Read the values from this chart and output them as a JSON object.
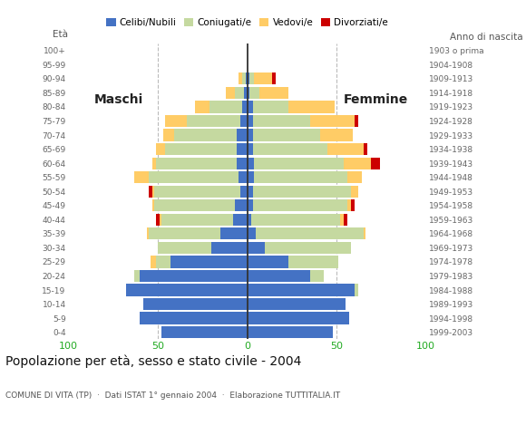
{
  "age_groups": [
    "0-4",
    "5-9",
    "10-14",
    "15-19",
    "20-24",
    "25-29",
    "30-34",
    "35-39",
    "40-44",
    "45-49",
    "50-54",
    "55-59",
    "60-64",
    "65-69",
    "70-74",
    "75-79",
    "80-84",
    "85-89",
    "90-94",
    "95-99",
    "100+"
  ],
  "birth_years": [
    "1999-2003",
    "1994-1998",
    "1989-1993",
    "1984-1988",
    "1979-1983",
    "1974-1978",
    "1969-1973",
    "1964-1968",
    "1959-1963",
    "1954-1958",
    "1949-1953",
    "1944-1948",
    "1939-1943",
    "1934-1938",
    "1929-1933",
    "1924-1928",
    "1919-1923",
    "1914-1918",
    "1909-1913",
    "1904-1908",
    "1903 o prima"
  ],
  "males": {
    "celibi": [
      48,
      60,
      58,
      68,
      60,
      43,
      20,
      15,
      8,
      7,
      4,
      5,
      6,
      6,
      6,
      4,
      3,
      2,
      1,
      0,
      0
    ],
    "coniugati": [
      0,
      0,
      0,
      0,
      3,
      8,
      30,
      40,
      40,
      45,
      48,
      50,
      45,
      40,
      35,
      30,
      18,
      5,
      2,
      0,
      0
    ],
    "vedovi": [
      0,
      0,
      0,
      0,
      0,
      3,
      0,
      1,
      1,
      1,
      1,
      8,
      2,
      5,
      6,
      12,
      8,
      5,
      2,
      0,
      0
    ],
    "divorziati": [
      0,
      0,
      0,
      0,
      0,
      0,
      0,
      0,
      2,
      0,
      2,
      0,
      0,
      0,
      0,
      0,
      0,
      0,
      0,
      0,
      0
    ]
  },
  "females": {
    "nubili": [
      48,
      57,
      55,
      60,
      35,
      23,
      10,
      5,
      2,
      3,
      3,
      4,
      4,
      3,
      3,
      3,
      3,
      1,
      1,
      0,
      0
    ],
    "coniugate": [
      0,
      0,
      0,
      2,
      8,
      28,
      48,
      60,
      50,
      53,
      55,
      52,
      50,
      42,
      38,
      32,
      20,
      6,
      3,
      0,
      0
    ],
    "vedove": [
      0,
      0,
      0,
      0,
      0,
      0,
      0,
      1,
      2,
      2,
      4,
      8,
      15,
      20,
      18,
      25,
      26,
      16,
      10,
      0,
      0
    ],
    "divorziate": [
      0,
      0,
      0,
      0,
      0,
      0,
      0,
      0,
      2,
      2,
      0,
      0,
      5,
      2,
      0,
      2,
      0,
      0,
      2,
      0,
      0
    ]
  },
  "colors": {
    "celibi": "#4472C4",
    "coniugati": "#C5D9A0",
    "vedovi": "#FFCC66",
    "divorziati": "#CC0000"
  },
  "xlim": 100,
  "title": "Popolazione per età, sesso e stato civile - 2004",
  "subtitle": "COMUNE DI VITA (TP)  ·  Dati ISTAT 1° gennaio 2004  ·  Elaborazione TUTTITALIA.IT",
  "xlabel_left": "Maschi",
  "xlabel_right": "Femmine",
  "ylabel_left": "Età",
  "ylabel_right": "Anno di nascita",
  "legend_labels": [
    "Celibi/Nubili",
    "Coniugati/e",
    "Vedovi/e",
    "Divorziati/e"
  ],
  "bg_color": "#ffffff",
  "plot_bg": "#ffffff",
  "grid_color": "#bbbbbb",
  "bar_height": 0.85
}
